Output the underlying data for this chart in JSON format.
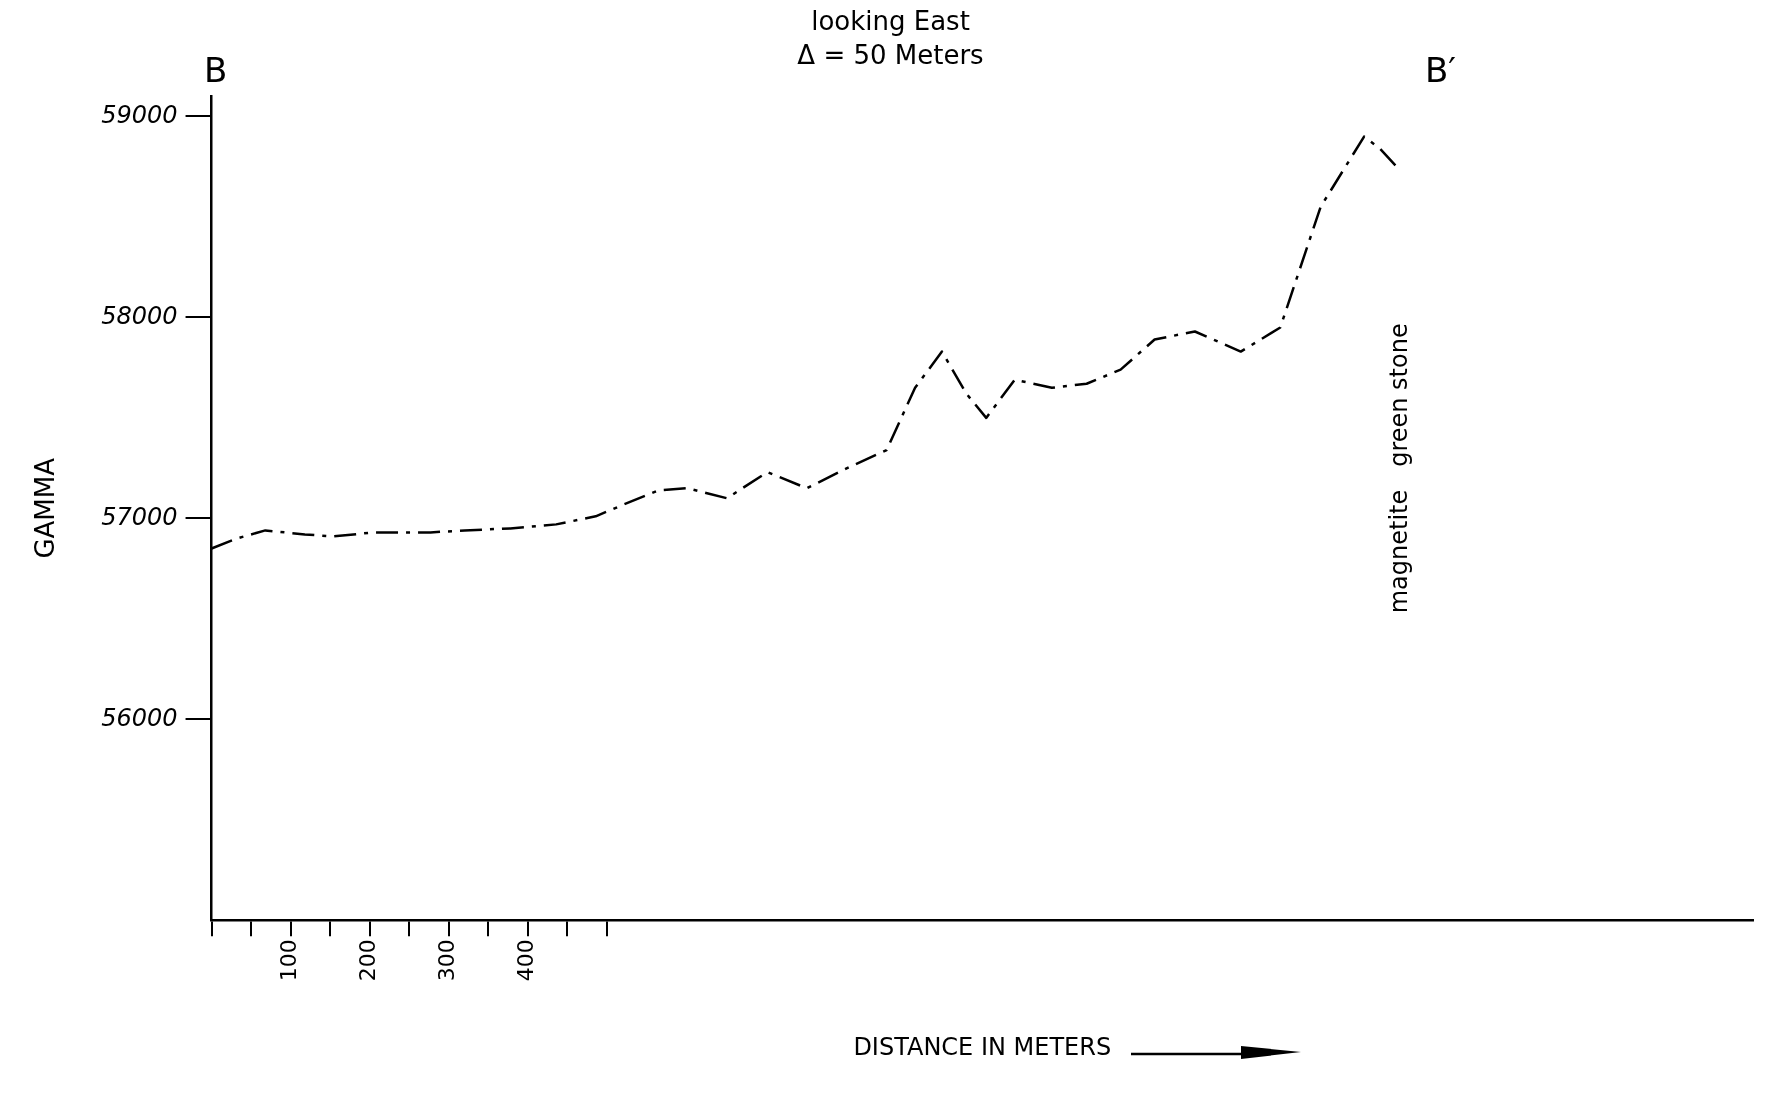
{
  "chart_data": {
    "type": "line",
    "title": "looking East",
    "subtitle": "Δ = 50 Meters",
    "xlabel": "DISTANCE IN METERS",
    "ylabel": "GAMMA",
    "x": [
      0,
      32,
      68,
      118,
      154,
      205,
      277,
      320,
      378,
      436,
      486,
      522,
      566,
      602,
      652,
      703,
      753,
      804,
      854,
      890,
      924,
      955,
      980,
      1016,
      1063,
      1107,
      1150,
      1193,
      1244,
      1302,
      1352,
      1403,
      1458,
      1478,
      1504
    ],
    "series": [
      {
        "color": "#000000",
        "values": [
          56850,
          56900,
          56940,
          56920,
          56910,
          56930,
          56930,
          56940,
          56950,
          56970,
          57010,
          57070,
          57140,
          57150,
          57100,
          57230,
          57150,
          57250,
          57340,
          57650,
          57830,
          57620,
          57500,
          57690,
          57650,
          57670,
          57740,
          57890,
          57930,
          57830,
          57950,
          58550,
          58900,
          58840,
          58730
        ]
      }
    ],
    "xlim": [
      0,
      1950
    ],
    "ylim": [
      55000,
      59100
    ],
    "xticks": [
      {
        "value": 0,
        "label": null
      },
      {
        "value": 50,
        "label": null
      },
      100,
      {
        "value": 150,
        "label": null
      },
      200,
      {
        "value": 250,
        "label": null
      },
      300,
      {
        "value": 350,
        "label": null
      },
      400,
      {
        "value": 450,
        "label": null
      },
      {
        "value": 500,
        "label": null
      }
    ],
    "yticks": [
      56000,
      57000,
      58000,
      59000
    ],
    "annotations": [
      "B",
      "B′",
      "magnetite   green stone"
    ],
    "grid": false,
    "legend": false,
    "marker": "none",
    "line_style": "dashed"
  }
}
